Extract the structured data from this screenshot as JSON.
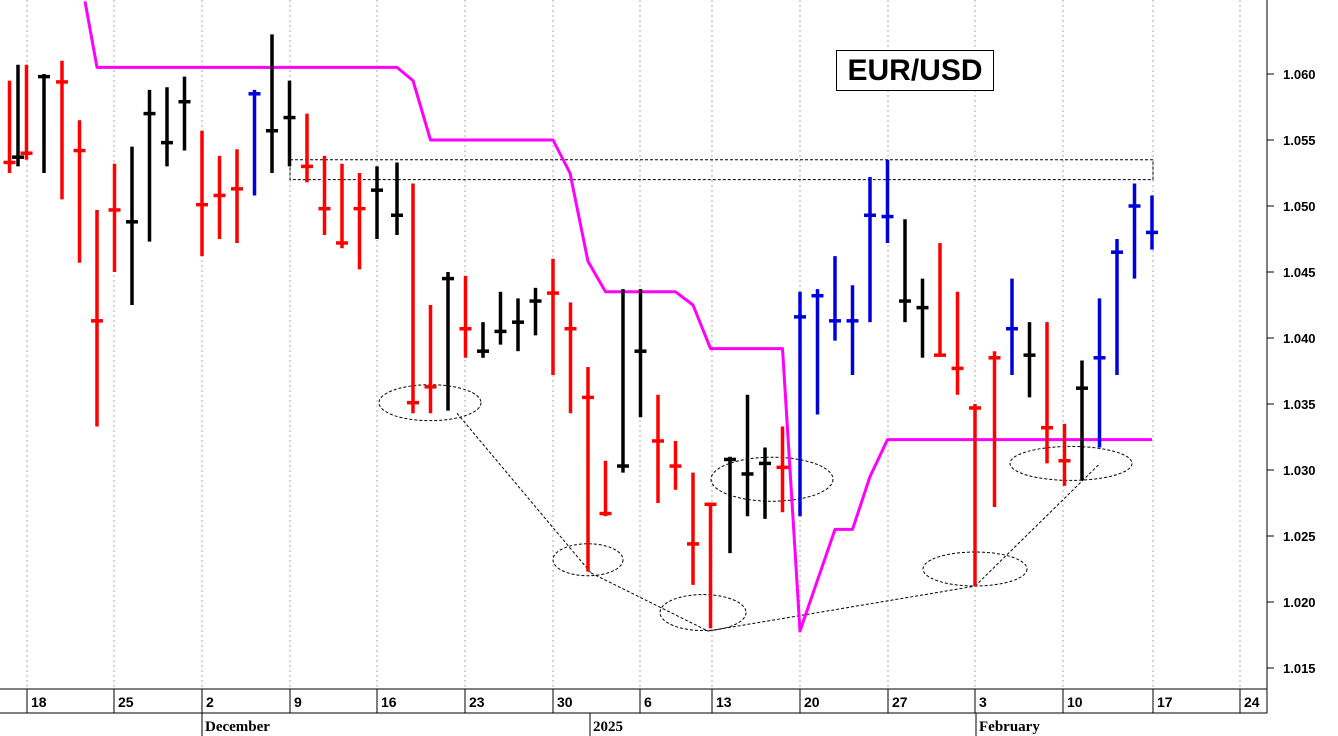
{
  "chart_data": {
    "type": "ohlc",
    "title": "EUR/USD",
    "y_axis": {
      "ylim": [
        1.0115,
        1.0655
      ],
      "ticks": [
        "1.015",
        "1.020",
        "1.025",
        "1.030",
        "1.035",
        "1.040",
        "1.045",
        "1.050",
        "1.055",
        "1.060"
      ],
      "position": "right"
    },
    "x_axis": {
      "day_ticks": [
        "18",
        "25",
        "2",
        "9",
        "16",
        "23",
        "30",
        "6",
        "13",
        "20",
        "27",
        "3",
        "10",
        "17",
        "24"
      ],
      "month_labels": [
        "December",
        "2025",
        "February"
      ]
    },
    "grid": "vertical dotted",
    "colors": {
      "down": "#ff0000",
      "neutral": "#000000",
      "up": "#0000dd",
      "trend": "#ff00ff",
      "annotation": "#000000"
    },
    "bars": [
      {
        "x": 9.5,
        "h": 1.0595,
        "l": 1.0525,
        "c": 1.0533,
        "k": "r"
      },
      {
        "x": 18,
        "h": 1.0607,
        "l": 1.053,
        "c": 1.0537,
        "k": "k"
      },
      {
        "x": 26.5,
        "h": 1.0607,
        "l": 1.0535,
        "c": 1.054,
        "k": "r"
      },
      {
        "x": 44,
        "h": 1.06,
        "l": 1.0525,
        "c": 1.0598,
        "k": "k"
      },
      {
        "x": 62,
        "h": 1.061,
        "l": 1.0505,
        "c": 1.0594,
        "k": "r"
      },
      {
        "x": 79.5,
        "h": 1.0565,
        "l": 1.0457,
        "c": 1.0542,
        "k": "r"
      },
      {
        "x": 97,
        "h": 1.0497,
        "l": 1.0333,
        "c": 1.0413,
        "k": "r"
      },
      {
        "x": 114.5,
        "h": 1.0532,
        "l": 1.045,
        "c": 1.0497,
        "k": "r"
      },
      {
        "x": 132,
        "h": 1.0545,
        "l": 1.0425,
        "c": 1.0488,
        "k": "k"
      },
      {
        "x": 149.5,
        "h": 1.0588,
        "l": 1.0473,
        "c": 1.057,
        "k": "k"
      },
      {
        "x": 167,
        "h": 1.059,
        "l": 1.053,
        "c": 1.0548,
        "k": "k"
      },
      {
        "x": 184.5,
        "h": 1.0598,
        "l": 1.0542,
        "c": 1.0579,
        "k": "k"
      },
      {
        "x": 202,
        "h": 1.0557,
        "l": 1.0462,
        "c": 1.0501,
        "k": "r"
      },
      {
        "x": 219.5,
        "h": 1.0538,
        "l": 1.0475,
        "c": 1.0508,
        "k": "r"
      },
      {
        "x": 237,
        "h": 1.0543,
        "l": 1.0472,
        "c": 1.0513,
        "k": "r"
      },
      {
        "x": 254.5,
        "h": 1.0588,
        "l": 1.0508,
        "c": 1.0585,
        "k": "b"
      },
      {
        "x": 272,
        "h": 1.063,
        "l": 1.0525,
        "c": 1.0557,
        "k": "k"
      },
      {
        "x": 289.5,
        "h": 1.0595,
        "l": 1.053,
        "c": 1.0567,
        "k": "k"
      },
      {
        "x": 307,
        "h": 1.057,
        "l": 1.0518,
        "c": 1.053,
        "k": "r"
      },
      {
        "x": 324.5,
        "h": 1.0538,
        "l": 1.0478,
        "c": 1.0498,
        "k": "r"
      },
      {
        "x": 342,
        "h": 1.0532,
        "l": 1.0468,
        "c": 1.0472,
        "k": "r"
      },
      {
        "x": 359.5,
        "h": 1.0525,
        "l": 1.0452,
        "c": 1.0498,
        "k": "r"
      },
      {
        "x": 377,
        "h": 1.053,
        "l": 1.0475,
        "c": 1.0512,
        "k": "k"
      },
      {
        "x": 397,
        "h": 1.0533,
        "l": 1.0478,
        "c": 1.0493,
        "k": "k"
      },
      {
        "x": 413,
        "h": 1.0517,
        "l": 1.0343,
        "c": 1.0351,
        "k": "r"
      },
      {
        "x": 430.5,
        "h": 1.0425,
        "l": 1.0343,
        "c": 1.0363,
        "k": "r"
      },
      {
        "x": 448,
        "h": 1.045,
        "l": 1.0345,
        "c": 1.0445,
        "k": "k"
      },
      {
        "x": 465.5,
        "h": 1.0447,
        "l": 1.0385,
        "c": 1.0407,
        "k": "r"
      },
      {
        "x": 483,
        "h": 1.0412,
        "l": 1.0385,
        "c": 1.039,
        "k": "k"
      },
      {
        "x": 500.5,
        "h": 1.0435,
        "l": 1.0395,
        "c": 1.0405,
        "k": "k"
      },
      {
        "x": 518,
        "h": 1.043,
        "l": 1.039,
        "c": 1.0412,
        "k": "k"
      },
      {
        "x": 535.5,
        "h": 1.0438,
        "l": 1.0402,
        "c": 1.0428,
        "k": "k"
      },
      {
        "x": 553,
        "h": 1.046,
        "l": 1.0372,
        "c": 1.0434,
        "k": "r"
      },
      {
        "x": 570.5,
        "h": 1.0427,
        "l": 1.0343,
        "c": 1.0407,
        "k": "r"
      },
      {
        "x": 588,
        "h": 1.0378,
        "l": 1.0223,
        "c": 1.0355,
        "k": "r"
      },
      {
        "x": 605.5,
        "h": 1.0307,
        "l": 1.0265,
        "c": 1.0267,
        "k": "r"
      },
      {
        "x": 623,
        "h": 1.0437,
        "l": 1.0298,
        "c": 1.0303,
        "k": "k"
      },
      {
        "x": 640.5,
        "h": 1.0437,
        "l": 1.034,
        "c": 1.039,
        "k": "k"
      },
      {
        "x": 658,
        "h": 1.0357,
        "l": 1.0275,
        "c": 1.0322,
        "k": "r"
      },
      {
        "x": 675.5,
        "h": 1.0322,
        "l": 1.0285,
        "c": 1.0303,
        "k": "r"
      },
      {
        "x": 693,
        "h": 1.0298,
        "l": 1.0213,
        "c": 1.0244,
        "k": "r"
      },
      {
        "x": 710.5,
        "h": 1.0273,
        "l": 1.018,
        "c": 1.0274,
        "k": "r"
      },
      {
        "x": 730,
        "h": 1.031,
        "l": 1.0237,
        "c": 1.0308,
        "k": "k"
      },
      {
        "x": 747.5,
        "h": 1.0357,
        "l": 1.0265,
        "c": 1.0297,
        "k": "k"
      },
      {
        "x": 765,
        "h": 1.0317,
        "l": 1.0263,
        "c": 1.0305,
        "k": "k"
      },
      {
        "x": 782.5,
        "h": 1.0333,
        "l": 1.0268,
        "c": 1.0302,
        "k": "r"
      },
      {
        "x": 800,
        "h": 1.0435,
        "l": 1.0265,
        "c": 1.0416,
        "k": "b"
      },
      {
        "x": 817.5,
        "h": 1.0437,
        "l": 1.0342,
        "c": 1.0432,
        "k": "b"
      },
      {
        "x": 835,
        "h": 1.0462,
        "l": 1.0398,
        "c": 1.0413,
        "k": "b"
      },
      {
        "x": 852.5,
        "h": 1.044,
        "l": 1.0372,
        "c": 1.0413,
        "k": "b"
      },
      {
        "x": 870,
        "h": 1.0522,
        "l": 1.0412,
        "c": 1.0493,
        "k": "b"
      },
      {
        "x": 887.5,
        "h": 1.0535,
        "l": 1.0472,
        "c": 1.0492,
        "k": "b"
      },
      {
        "x": 905,
        "h": 1.049,
        "l": 1.0412,
        "c": 1.0428,
        "k": "k"
      },
      {
        "x": 922.5,
        "h": 1.0445,
        "l": 1.0385,
        "c": 1.0423,
        "k": "k"
      },
      {
        "x": 940,
        "h": 1.0472,
        "l": 1.0387,
        "c": 1.0387,
        "k": "r"
      },
      {
        "x": 957.5,
        "h": 1.0435,
        "l": 1.0357,
        "c": 1.0377,
        "k": "r"
      },
      {
        "x": 975,
        "h": 1.035,
        "l": 1.0212,
        "c": 1.0347,
        "k": "r"
      },
      {
        "x": 994.5,
        "h": 1.039,
        "l": 1.0272,
        "c": 1.0385,
        "k": "r"
      },
      {
        "x": 1012,
        "h": 1.0445,
        "l": 1.0372,
        "c": 1.0407,
        "k": "b"
      },
      {
        "x": 1029.5,
        "h": 1.0412,
        "l": 1.0355,
        "c": 1.0387,
        "k": "k"
      },
      {
        "x": 1047,
        "h": 1.0412,
        "l": 1.0305,
        "c": 1.0332,
        "k": "r"
      },
      {
        "x": 1064.5,
        "h": 1.0335,
        "l": 1.0288,
        "c": 1.0307,
        "k": "r"
      },
      {
        "x": 1082,
        "h": 1.0383,
        "l": 1.0292,
        "c": 1.0362,
        "k": "k"
      },
      {
        "x": 1099.5,
        "h": 1.043,
        "l": 1.0317,
        "c": 1.0385,
        "k": "b"
      },
      {
        "x": 1117,
        "h": 1.0475,
        "l": 1.0372,
        "c": 1.0465,
        "k": "b"
      },
      {
        "x": 1134.5,
        "h": 1.0517,
        "l": 1.0445,
        "c": 1.05,
        "k": "b"
      },
      {
        "x": 1152,
        "h": 1.0508,
        "l": 1.0467,
        "c": 1.048,
        "k": "b"
      }
    ],
    "trend_line": [
      [
        85,
        1.0655
      ],
      [
        97,
        1.0605
      ],
      [
        397,
        1.0605
      ],
      [
        413,
        1.0595
      ],
      [
        430.5,
        1.055
      ],
      [
        553,
        1.055
      ],
      [
        570,
        1.0525
      ],
      [
        588,
        1.0458
      ],
      [
        605.5,
        1.0435
      ],
      [
        675.5,
        1.0435
      ],
      [
        693,
        1.0425
      ],
      [
        710.5,
        1.0392
      ],
      [
        782.5,
        1.0392
      ],
      [
        800,
        1.0178
      ],
      [
        835,
        1.0255
      ],
      [
        852.5,
        1.0255
      ],
      [
        870,
        1.0295
      ],
      [
        887.5,
        1.0323
      ],
      [
        1152,
        1.0323
      ]
    ],
    "resistance_zone": {
      "x_start": 290,
      "x_end": 1153,
      "y_low": 1.052,
      "y_high": 1.0535
    },
    "ellipses": [
      {
        "cx": 430,
        "cy": 1.0351,
        "rx": 51,
        "ry": 18
      },
      {
        "cx": 588,
        "cy": 1.0232,
        "rx": 35,
        "ry": 16
      },
      {
        "cx": 703,
        "cy": 1.0192,
        "rx": 43,
        "ry": 18
      },
      {
        "cx": 772,
        "cy": 1.0293,
        "rx": 61,
        "ry": 22
      },
      {
        "cx": 975,
        "cy": 1.0225,
        "rx": 52,
        "ry": 17
      },
      {
        "cx": 1071,
        "cy": 1.0305,
        "rx": 61,
        "ry": 17
      }
    ],
    "dashed_connectors": [
      [
        [
          457,
          1.0343
        ],
        [
          591,
          1.0222
        ]
      ],
      [
        [
          591,
          1.0222
        ],
        [
          708,
          1.0178
        ]
      ],
      [
        [
          708,
          1.0178
        ],
        [
          975,
          1.0212
        ]
      ],
      [
        [
          975,
          1.0212
        ],
        [
          1100,
          1.0305
        ]
      ]
    ]
  }
}
